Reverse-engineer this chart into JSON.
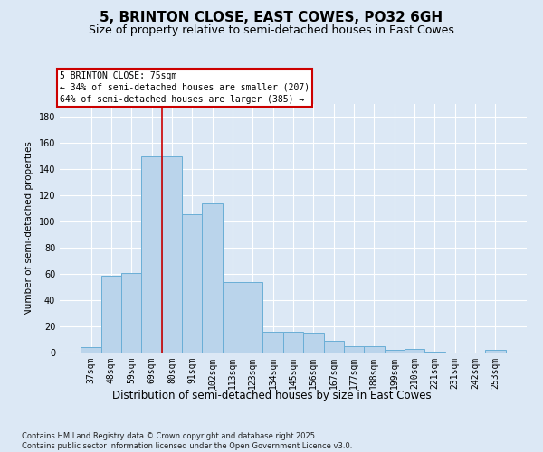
{
  "title": "5, BRINTON CLOSE, EAST COWES, PO32 6GH",
  "subtitle": "Size of property relative to semi-detached houses in East Cowes",
  "xlabel": "Distribution of semi-detached houses by size in East Cowes",
  "ylabel": "Number of semi-detached properties",
  "categories": [
    "37sqm",
    "48sqm",
    "59sqm",
    "69sqm",
    "80sqm",
    "91sqm",
    "102sqm",
    "113sqm",
    "123sqm",
    "134sqm",
    "145sqm",
    "156sqm",
    "167sqm",
    "177sqm",
    "188sqm",
    "199sqm",
    "210sqm",
    "221sqm",
    "231sqm",
    "242sqm",
    "253sqm"
  ],
  "values": [
    4,
    59,
    61,
    150,
    150,
    106,
    114,
    54,
    54,
    16,
    16,
    15,
    9,
    5,
    5,
    2,
    3,
    1,
    0,
    0,
    2
  ],
  "bar_color": "#bad4eb",
  "bar_edge_color": "#6aaed6",
  "background_color": "#dce8f5",
  "grid_color": "#ffffff",
  "vline_x": 3.5,
  "vline_color": "#cc0000",
  "annotation_text": "5 BRINTON CLOSE: 75sqm\n← 34% of semi-detached houses are smaller (207)\n64% of semi-detached houses are larger (385) →",
  "footer": "Contains HM Land Registry data © Crown copyright and database right 2025.\nContains public sector information licensed under the Open Government Licence v3.0.",
  "ylim": [
    0,
    190
  ],
  "yticks": [
    0,
    20,
    40,
    60,
    80,
    100,
    120,
    140,
    160,
    180
  ],
  "title_fontsize": 11,
  "subtitle_fontsize": 9,
  "xlabel_fontsize": 8.5,
  "ylabel_fontsize": 7.5,
  "tick_fontsize": 7,
  "annotation_fontsize": 7,
  "footer_fontsize": 6
}
